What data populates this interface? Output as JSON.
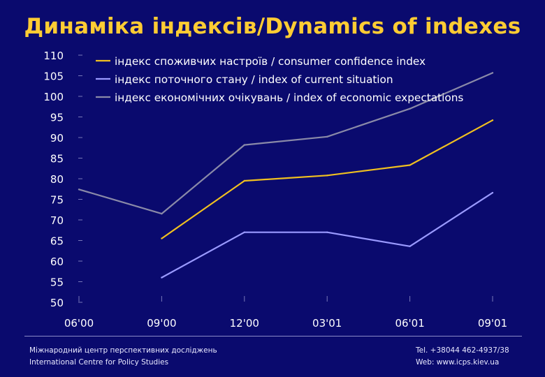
{
  "title": "Динаміка індексів/Dynamics of indexes",
  "footer": {
    "org_ua": "Міжнародний центр перспективних досліджень",
    "org_en": "International Centre for Policy Studies",
    "tel": "Tel. +38044 462-4937/38",
    "web": "Web: www.icps.kiev.ua"
  },
  "colors": {
    "background": "#0a0a6e",
    "title": "#ffcc33",
    "text": "#ffffff"
  },
  "chart_data": {
    "type": "line",
    "title": "Динаміка індексів/Dynamics of indexes",
    "xlabel": "",
    "ylabel": "",
    "categories": [
      "06'00",
      "09'00",
      "12'00",
      "03'01",
      "06'01",
      "09'01"
    ],
    "ylim": [
      50,
      110
    ],
    "yticks": [
      50,
      55,
      60,
      65,
      70,
      75,
      80,
      85,
      90,
      95,
      100,
      105,
      110
    ],
    "grid": false,
    "legend_position": "top",
    "series": [
      {
        "name": "індекс споживчих настроїв / consumer confidence index",
        "color": "#f0c020",
        "values": [
          null,
          65.5,
          79.5,
          80.8,
          83.3,
          94.2
        ]
      },
      {
        "name": "індекс поточного стану / index of current situation",
        "color": "#9a9aff",
        "values": [
          null,
          56.0,
          67.0,
          67.0,
          63.6,
          76.6
        ]
      },
      {
        "name": "індекс економічних очікувань / index of economic expectations",
        "color": "#8a8aa8",
        "values": [
          77.4,
          71.5,
          88.2,
          90.2,
          97.0,
          105.7
        ]
      }
    ]
  }
}
